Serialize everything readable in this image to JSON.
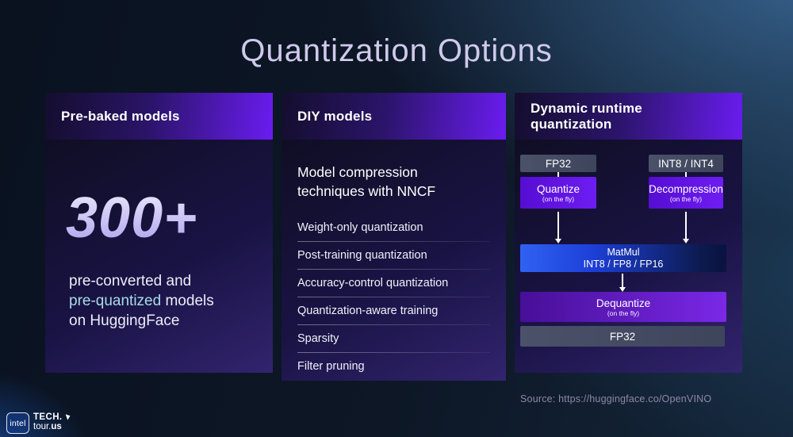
{
  "slide": {
    "title": "Quantization Options",
    "source": "Source: https://huggingface.co/OpenVINO"
  },
  "panels": {
    "prebaked": {
      "header": "Pre-baked models",
      "stat": "300+",
      "desc_line1": "pre-converted and",
      "desc_highlight": "pre-quantized",
      "desc_line2_rest": " models",
      "desc_line3": "on HuggingFace"
    },
    "diy": {
      "header": "DIY models",
      "subtitle": "Model compression techniques with NNCF",
      "items": [
        "Weight-only quantization",
        "Post-training quantization",
        "Accuracy-control quantization",
        "Quantization-aware training",
        "Sparsity",
        "Filter pruning"
      ]
    },
    "dynamic": {
      "header": "Dynamic runtime quantization",
      "flow": {
        "input_left": "FP32",
        "input_right": "INT8 / INT4",
        "op_left": "Quantize",
        "op_left_note": "(on the fly)",
        "op_right": "Decompression",
        "op_right_note": "(on the fly)",
        "matmul_line1": "MatMul",
        "matmul_line2": "INT8 / FP8 / FP16",
        "dequantize": "Dequantize",
        "dequantize_note": "(on the fly)",
        "output": "FP32"
      }
    }
  },
  "footer": {
    "intel_label": "intel",
    "tech_top": "TECH.",
    "tech_bottom_regular": "tour.",
    "tech_bottom_bold": "us"
  },
  "colors": {
    "header_gradient_dark": "#140e2e",
    "header_gradient_purple": "#6a1cf0",
    "panel_body_dark": "#100e24",
    "panel_body_purple": "#32246e",
    "accent_violet_box": "#6d1df2",
    "matmul_blue": "#2f62f2",
    "slate_box": "#4b5169",
    "highlight_cyan": "#a9dce8",
    "stat_lavender": "#c9c1f2",
    "title_lavender": "#cfc9ec",
    "source_gray": "#8d88a8"
  }
}
